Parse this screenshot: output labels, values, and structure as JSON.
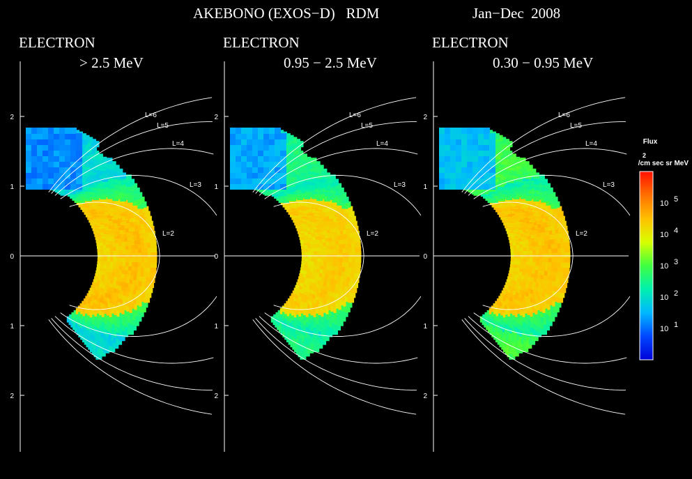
{
  "header": {
    "title": "AKEBONO (EXOS−D)   RDM",
    "period": "Jan−Dec  2008"
  },
  "colorbar": {
    "title": "Flux",
    "units_exp": "2",
    "units": "/cm sec sr MeV",
    "tick_base": "10",
    "ticks": [
      {
        "exp": "5",
        "value": 100000
      },
      {
        "exp": "4",
        "value": 10000
      },
      {
        "exp": "3",
        "value": 1000
      },
      {
        "exp": "2",
        "value": 100
      },
      {
        "exp": "1",
        "value": 10
      }
    ],
    "log_min": 0,
    "log_max": 6,
    "colors": [
      "#0000d8",
      "#0048ff",
      "#00b8ff",
      "#00f0b0",
      "#40ff40",
      "#d8ff00",
      "#ffc000",
      "#ff7000",
      "#ff1000"
    ]
  },
  "chart_data": [
    {
      "type": "heatmap",
      "title": "ELECTRON",
      "subtitle": "> 2.5 MeV",
      "axis_ticks": [
        "2",
        "1",
        "0",
        "1",
        "2"
      ],
      "shell_labels": [
        "L=6",
        "L=5",
        "L=4",
        "L=3",
        "L=2"
      ],
      "coordinate_range": [
        -2.8,
        2.8
      ],
      "peak_log_flux": 4.5,
      "outer_belt_log_flux": 2.0
    },
    {
      "type": "heatmap",
      "title": "ELECTRON",
      "subtitle": "0.95 − 2.5 MeV",
      "axis_ticks": [
        "2",
        "1",
        "0",
        "1",
        "2"
      ],
      "shell_labels": [
        "L=6",
        "L=5",
        "L=4",
        "L=3",
        "L=2"
      ],
      "coordinate_range": [
        -2.8,
        2.8
      ],
      "peak_log_flux": 4.4,
      "outer_belt_log_flux": 2.6
    },
    {
      "type": "heatmap",
      "title": "ELECTRON",
      "subtitle": "0.30 − 0.95 MeV",
      "axis_ticks": [
        "2",
        "1",
        "0",
        "1",
        "2"
      ],
      "shell_labels": [
        "L=6",
        "L=5",
        "L=4",
        "L=3",
        "L=2"
      ],
      "coordinate_range": [
        -2.8,
        2.8
      ],
      "peak_log_flux": 4.5,
      "outer_belt_log_flux": 3.0
    }
  ]
}
